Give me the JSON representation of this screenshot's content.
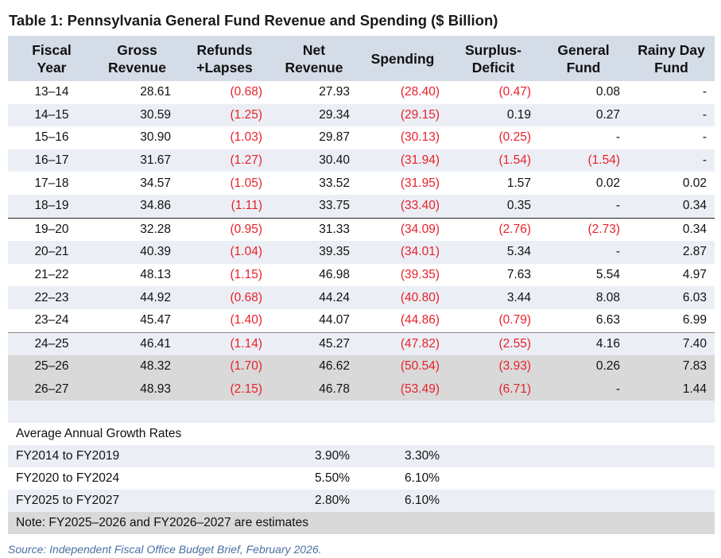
{
  "title": "Table 1: Pennsylvania General Fund Revenue and Spending ($ Billion)",
  "headers": {
    "fy": [
      "Fiscal",
      "Year"
    ],
    "gross": [
      "Gross",
      "Revenue"
    ],
    "refunds": [
      "Refunds",
      "+Lapses"
    ],
    "net": [
      "Net",
      "Revenue"
    ],
    "spending": [
      "Spending"
    ],
    "surplus": [
      "Surplus-",
      "Deficit"
    ],
    "general": [
      "General",
      "Fund"
    ],
    "rainy": [
      "Rainy Day",
      "Fund"
    ]
  },
  "rows": [
    {
      "fy": "13–14",
      "gross": "28.61",
      "refunds": "(0.68)",
      "net": "27.93",
      "spending": "(28.40)",
      "surplus": "(0.47)",
      "general": "0.08",
      "rainy": "-"
    },
    {
      "fy": "14–15",
      "gross": "30.59",
      "refunds": "(1.25)",
      "net": "29.34",
      "spending": "(29.15)",
      "surplus": "0.19",
      "general": "0.27",
      "rainy": "-"
    },
    {
      "fy": "15–16",
      "gross": "30.90",
      "refunds": "(1.03)",
      "net": "29.87",
      "spending": "(30.13)",
      "surplus": "(0.25)",
      "general": "-",
      "rainy": "-"
    },
    {
      "fy": "16–17",
      "gross": "31.67",
      "refunds": "(1.27)",
      "net": "30.40",
      "spending": "(31.94)",
      "surplus": "(1.54)",
      "general": "(1.54)",
      "rainy": "-"
    },
    {
      "fy": "17–18",
      "gross": "34.57",
      "refunds": "(1.05)",
      "net": "33.52",
      "spending": "(31.95)",
      "surplus": "1.57",
      "general": "0.02",
      "rainy": "0.02"
    },
    {
      "fy": "18–19",
      "gross": "34.86",
      "refunds": "(1.11)",
      "net": "33.75",
      "spending": "(33.40)",
      "surplus": "0.35",
      "general": "-",
      "rainy": "0.34"
    },
    {
      "fy": "19–20",
      "gross": "32.28",
      "refunds": "(0.95)",
      "net": "31.33",
      "spending": "(34.09)",
      "surplus": "(2.76)",
      "general": "(2.73)",
      "rainy": "0.34"
    },
    {
      "fy": "20–21",
      "gross": "40.39",
      "refunds": "(1.04)",
      "net": "39.35",
      "spending": "(34.01)",
      "surplus": "5.34",
      "general": "-",
      "rainy": "2.87"
    },
    {
      "fy": "21–22",
      "gross": "48.13",
      "refunds": "(1.15)",
      "net": "46.98",
      "spending": "(39.35)",
      "surplus": "7.63",
      "general": "5.54",
      "rainy": "4.97"
    },
    {
      "fy": "22–23",
      "gross": "44.92",
      "refunds": "(0.68)",
      "net": "44.24",
      "spending": "(40.80)",
      "surplus": "3.44",
      "general": "8.08",
      "rainy": "6.03"
    },
    {
      "fy": "23–24",
      "gross": "45.47",
      "refunds": "(1.40)",
      "net": "44.07",
      "spending": "(44.86)",
      "surplus": "(0.79)",
      "general": "6.63",
      "rainy": "6.99"
    },
    {
      "fy": "24–25",
      "gross": "46.41",
      "refunds": "(1.14)",
      "net": "45.27",
      "spending": "(47.82)",
      "surplus": "(2.55)",
      "general": "4.16",
      "rainy": "7.40"
    },
    {
      "fy": "25–26",
      "gross": "48.32",
      "refunds": "(1.70)",
      "net": "46.62",
      "spending": "(50.54)",
      "surplus": "(3.93)",
      "general": "0.26",
      "rainy": "7.83"
    },
    {
      "fy": "26–27",
      "gross": "48.93",
      "refunds": "(2.15)",
      "net": "46.78",
      "spending": "(53.49)",
      "surplus": "(6.71)",
      "general": "-",
      "rainy": "1.44"
    }
  ],
  "growth": {
    "heading": "Average Annual Growth Rates",
    "rows": [
      {
        "label": "FY2014 to FY2019",
        "net": "3.90%",
        "spending": "3.30%"
      },
      {
        "label": "FY2020 to FY2024",
        "net": "5.50%",
        "spending": "6.10%"
      },
      {
        "label": "FY2025 to FY2027",
        "net": "2.80%",
        "spending": "6.10%"
      }
    ],
    "note": "Note: FY2025–2026 and FY2026–2027 are estimates"
  },
  "source": "Source: Independent Fiscal Office Budget Brief, February 2026.",
  "colors": {
    "header_bg": "#d4dce8",
    "stripe": "#ebeff5",
    "estimate_bg": "#d9d9d9",
    "negative": "#e8212b",
    "source": "#4a6fa5"
  }
}
